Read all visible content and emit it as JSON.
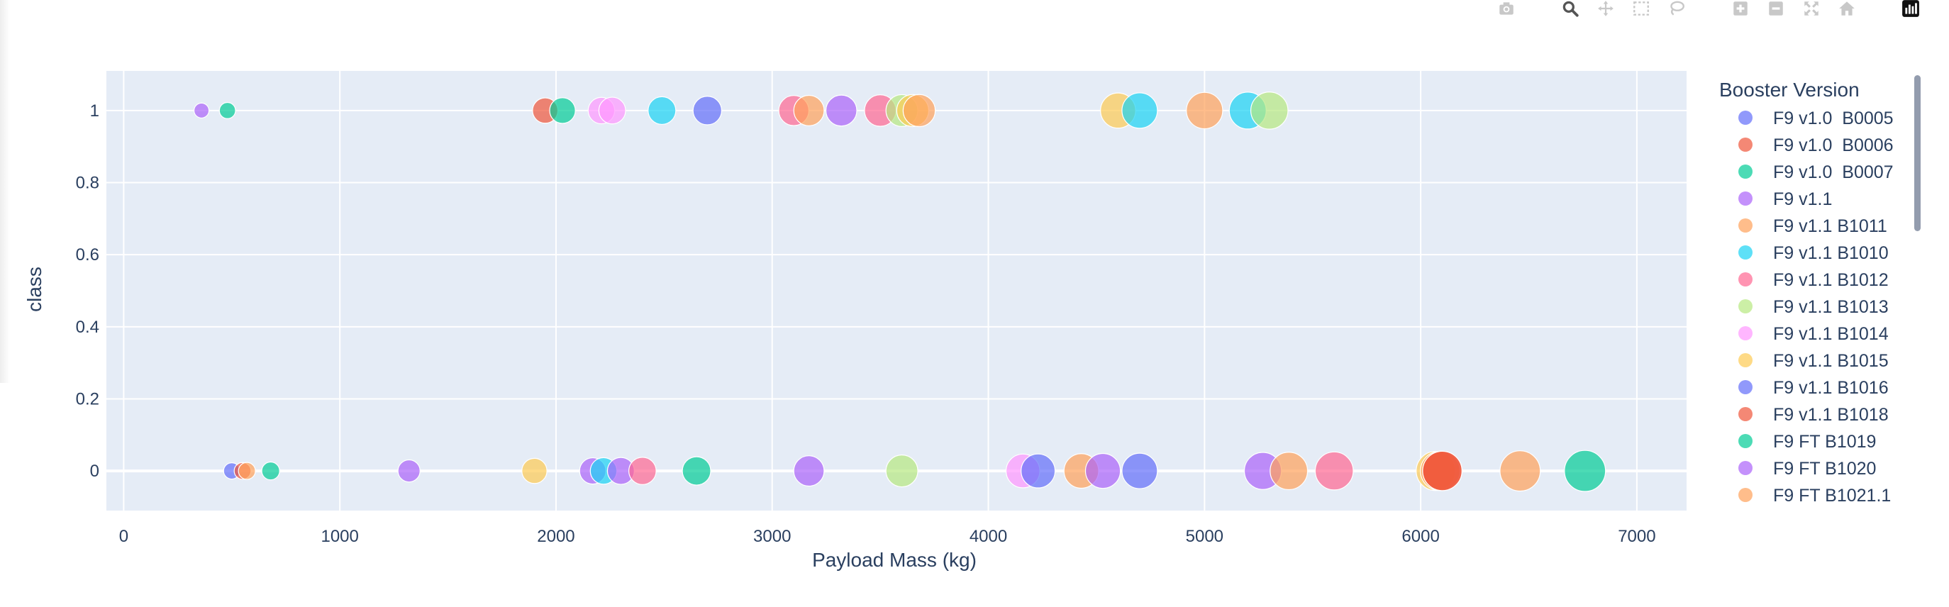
{
  "toolbar": {
    "buttons": [
      {
        "name": "camera-icon",
        "label": "Download plot as a png"
      },
      {
        "name": "zoom-icon",
        "label": "Zoom"
      },
      {
        "name": "pan-icon",
        "label": "Pan"
      },
      {
        "name": "box-select-icon",
        "label": "Box Select"
      },
      {
        "name": "lasso-select-icon",
        "label": "Lasso Select"
      },
      {
        "name": "zoom-in-icon",
        "label": "Zoom in"
      },
      {
        "name": "zoom-out-icon",
        "label": "Zoom out"
      },
      {
        "name": "autoscale-icon",
        "label": "Autoscale"
      },
      {
        "name": "reset-axes-icon",
        "label": "Reset axes"
      },
      {
        "name": "plotly-logo-icon",
        "label": "Produced with Plotly"
      }
    ]
  },
  "chart_data": {
    "type": "scatter",
    "title": "",
    "xlabel": "Payload Mass (kg)",
    "ylabel": "class",
    "xlim": [
      -80,
      7230
    ],
    "ylim": [
      -0.11,
      1.11
    ],
    "x_ticks": [
      0,
      1000,
      2000,
      3000,
      4000,
      5000,
      6000,
      7000
    ],
    "x_tick_labels": [
      "0",
      "1000",
      "2000",
      "3000",
      "4000",
      "5000",
      "6000",
      "7000"
    ],
    "y_ticks": [
      0,
      0.2,
      0.4,
      0.6,
      0.8,
      1
    ],
    "y_tick_labels": [
      "0",
      "0.2",
      "0.4",
      "0.6",
      "0.8",
      "1"
    ],
    "grid": true,
    "plot_bgcolor": "#e5ecf6",
    "marker_size_note": "marker size encodes Payload Mass (kg)",
    "legend_title": "Booster Version",
    "legend_placement": "right",
    "series": [
      {
        "name": "F9 v1.0  B0005",
        "color": "#636efa",
        "points": [
          [
            500,
            0
          ],
          [
            2700,
            1
          ],
          [
            4700,
            0
          ]
        ]
      },
      {
        "name": "F9 v1.0  B0006",
        "color": "#EF553B",
        "points": [
          [
            550,
            0
          ],
          [
            1950,
            1
          ],
          [
            6100,
            0
          ]
        ]
      },
      {
        "name": "F9 v1.0  B0007",
        "color": "#00cc96",
        "points": [
          [
            480,
            1
          ],
          [
            680,
            0
          ],
          [
            2030,
            1
          ],
          [
            2650,
            0
          ],
          [
            6760,
            0
          ]
        ]
      },
      {
        "name": "F9 v1.1",
        "color": "#ab63fa",
        "points": [
          [
            360,
            1
          ],
          [
            1320,
            0
          ],
          [
            2170,
            0
          ],
          [
            2300,
            0
          ],
          [
            3170,
            0
          ],
          [
            3320,
            1
          ],
          [
            4530,
            0
          ],
          [
            5270,
            0
          ]
        ]
      },
      {
        "name": "F9 v1.1 B1011",
        "color": "#FFA15A",
        "points": [
          [
            570,
            0
          ],
          [
            3170,
            1
          ],
          [
            3680,
            1
          ],
          [
            4430,
            0
          ],
          [
            5000,
            1
          ],
          [
            5390,
            0
          ],
          [
            6090,
            0
          ],
          [
            6460,
            0
          ]
        ]
      },
      {
        "name": "F9 v1.1 B1010",
        "color": "#19d3f3",
        "points": [
          [
            2220,
            0
          ],
          [
            2490,
            1
          ],
          [
            4700,
            1
          ],
          [
            5200,
            1
          ]
        ]
      },
      {
        "name": "F9 v1.1 B1012",
        "color": "#FF6692",
        "points": [
          [
            2400,
            0
          ],
          [
            3100,
            1
          ],
          [
            3500,
            1
          ],
          [
            5600,
            0
          ]
        ]
      },
      {
        "name": "F9 v1.1 B1013",
        "color": "#B6E880",
        "points": [
          [
            3600,
            0
          ],
          [
            3600,
            1
          ],
          [
            5300,
            1
          ]
        ]
      },
      {
        "name": "F9 v1.1 B1014",
        "color": "#FF97FF",
        "points": [
          [
            2210,
            1
          ],
          [
            2260,
            1
          ],
          [
            4160,
            0
          ]
        ]
      },
      {
        "name": "F9 v1.1 B1015",
        "color": "#FECB52",
        "points": [
          [
            1900,
            0
          ],
          [
            3650,
            1
          ],
          [
            4600,
            1
          ],
          [
            6070,
            0
          ]
        ]
      },
      {
        "name": "F9 v1.1 B1016",
        "color": "#636efa",
        "points": [
          [
            4230,
            0
          ]
        ]
      },
      {
        "name": "F9 v1.1 B1018",
        "color": "#EF553B",
        "points": [
          [
            6100,
            0
          ]
        ]
      },
      {
        "name": "F9 FT B1019",
        "color": "#00cc96",
        "points": []
      },
      {
        "name": "F9 FT B1020",
        "color": "#ab63fa",
        "points": []
      },
      {
        "name": "F9 FT B1021.1",
        "color": "#FFA15A",
        "points": []
      }
    ]
  }
}
